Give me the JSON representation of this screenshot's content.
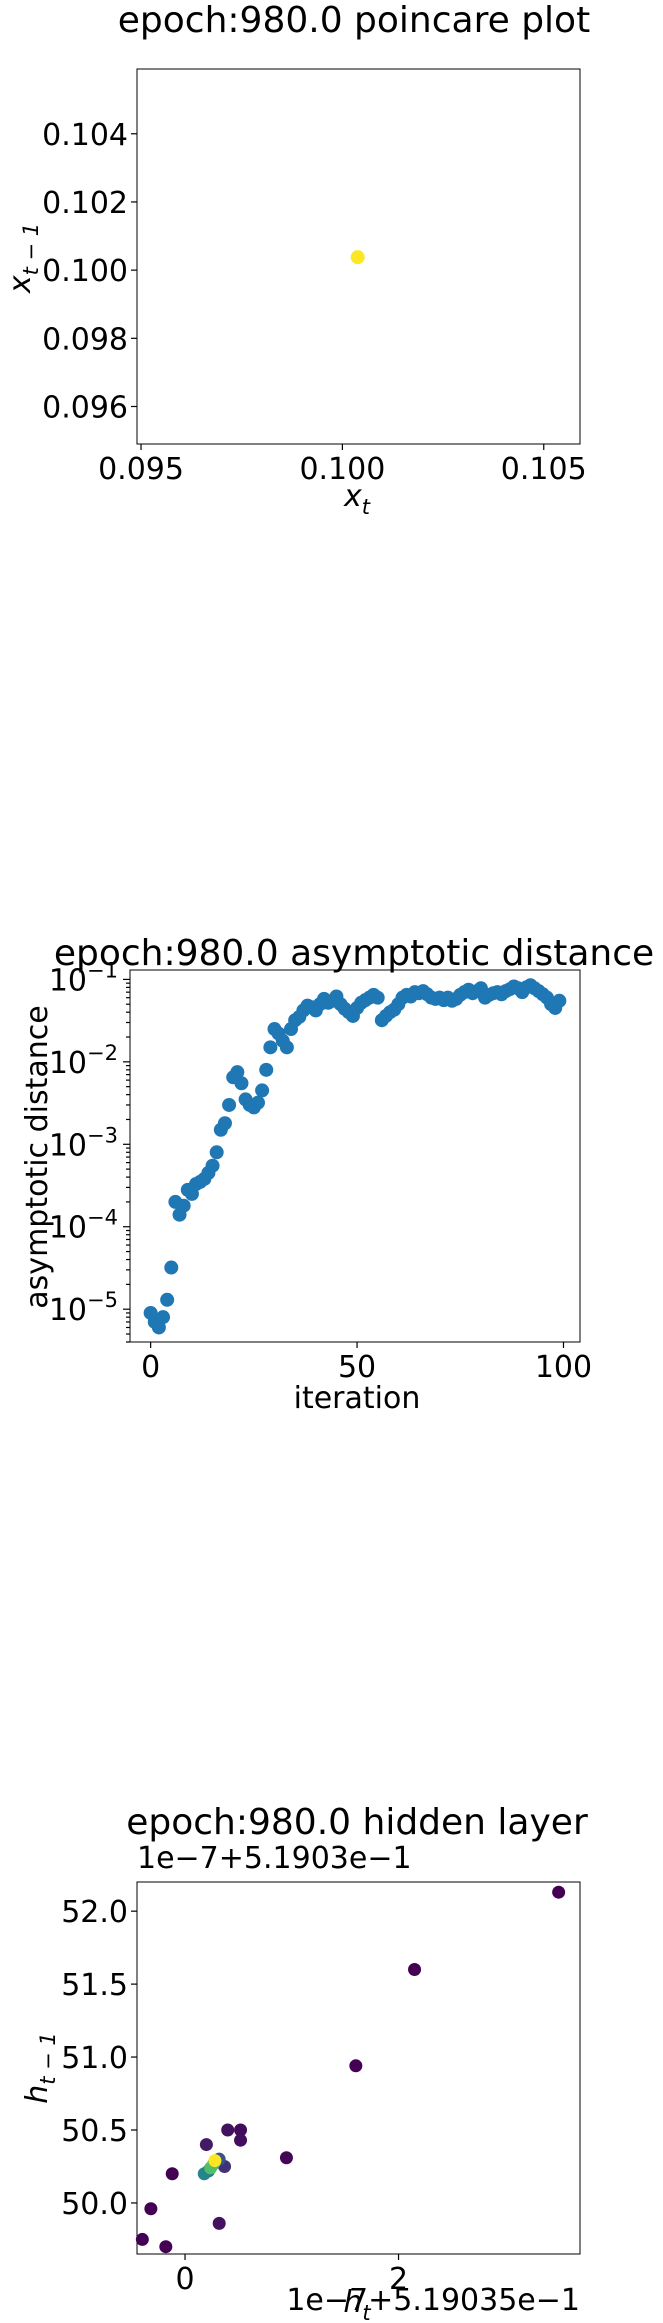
{
  "charts": [
    {
      "title": "epoch:980.0 poincare plot",
      "xlabel": "x",
      "xlabel_sub": "t",
      "ylabel": "x",
      "ylabel_sub": "t − 1",
      "xticks": [
        "0.095",
        "0.100",
        "0.105"
      ],
      "yticks": [
        "0.096",
        "0.098",
        "0.100",
        "0.102",
        "0.104"
      ]
    },
    {
      "title": "epoch:980.0 asymptotic distance",
      "xlabel": "iteration",
      "ylabel": "asymptotic distance",
      "xticks": [
        "0",
        "50",
        "100"
      ],
      "yticks_base": "10",
      "yticks_exp": [
        "−5",
        "−4",
        "−3",
        "−2",
        "−1"
      ]
    },
    {
      "title": "epoch:980.0 hidden layer",
      "xlabel": "h",
      "xlabel_sub": "t",
      "ylabel": "h",
      "ylabel_sub": "t − 1",
      "x_offset": "1e−7+5.19035e−1",
      "y_offset": "1e−7+5.1903e−1",
      "xticks": [
        "0",
        "2"
      ],
      "yticks": [
        "50.0",
        "50.5",
        "51.0",
        "51.5",
        "52.0"
      ]
    }
  ],
  "chart_data": [
    {
      "type": "scatter",
      "title": "epoch:980.0 poincare plot",
      "xlabel": "x_t",
      "ylabel": "x_{t-1}",
      "xlim": [
        0.0949,
        0.1059
      ],
      "ylim": [
        0.0949,
        0.1059
      ],
      "color": "#fde725",
      "points": [
        [
          0.10038,
          0.10038
        ]
      ]
    },
    {
      "type": "scatter",
      "title": "epoch:980.0 asymptotic distance",
      "xlabel": "iteration",
      "ylabel": "asymptotic distance",
      "yscale": "log",
      "xlim": [
        -5,
        104
      ],
      "ylim": [
        4e-06,
        0.13
      ],
      "color": "#1f77b4",
      "x": [
        0,
        1,
        2,
        3,
        4,
        5,
        6,
        7,
        8,
        9,
        10,
        11,
        12,
        13,
        14,
        15,
        16,
        17,
        18,
        19,
        20,
        21,
        22,
        23,
        24,
        25,
        26,
        27,
        28,
        29,
        30,
        31,
        32,
        33,
        34,
        35,
        36,
        37,
        38,
        39,
        40,
        41,
        42,
        43,
        44,
        45,
        46,
        47,
        48,
        49,
        50,
        51,
        52,
        53,
        54,
        55,
        56,
        57,
        58,
        59,
        60,
        61,
        62,
        63,
        64,
        65,
        66,
        67,
        68,
        69,
        70,
        71,
        72,
        73,
        74,
        75,
        76,
        77,
        78,
        79,
        80,
        81,
        82,
        83,
        84,
        85,
        86,
        87,
        88,
        89,
        90,
        91,
        92,
        93,
        94,
        95,
        96,
        97,
        98,
        99
      ],
      "y": [
        9e-06,
        7e-06,
        6e-06,
        8e-06,
        1.3e-05,
        3.2e-05,
        0.0002,
        0.00014,
        0.00018,
        0.00028,
        0.00025,
        0.00033,
        0.00035,
        0.00038,
        0.00045,
        0.00055,
        0.0008,
        0.0015,
        0.0018,
        0.003,
        0.0065,
        0.0075,
        0.0055,
        0.0035,
        0.003,
        0.0028,
        0.0032,
        0.0045,
        0.008,
        0.015,
        0.025,
        0.022,
        0.018,
        0.015,
        0.025,
        0.032,
        0.035,
        0.042,
        0.048,
        0.046,
        0.042,
        0.05,
        0.058,
        0.052,
        0.055,
        0.062,
        0.05,
        0.044,
        0.04,
        0.036,
        0.045,
        0.052,
        0.056,
        0.06,
        0.065,
        0.06,
        0.032,
        0.036,
        0.04,
        0.043,
        0.05,
        0.06,
        0.065,
        0.062,
        0.07,
        0.068,
        0.072,
        0.066,
        0.06,
        0.058,
        0.06,
        0.056,
        0.06,
        0.055,
        0.058,
        0.065,
        0.07,
        0.075,
        0.068,
        0.072,
        0.078,
        0.06,
        0.065,
        0.068,
        0.07,
        0.066,
        0.072,
        0.076,
        0.082,
        0.078,
        0.07,
        0.08,
        0.085,
        0.078,
        0.072,
        0.066,
        0.06,
        0.05,
        0.045,
        0.055
      ]
    },
    {
      "type": "scatter",
      "title": "epoch:980.0 hidden layer",
      "xlabel": "h_t",
      "ylabel": "h_{t-1}",
      "x_offset": "1e-7+5.19035e-1",
      "y_offset": "1e-7+5.1903e-1",
      "xlim": [
        -0.45,
        3.7
      ],
      "ylim": [
        49.65,
        52.2
      ],
      "colormap": "viridis",
      "points": [
        {
          "x": 3.5,
          "y": 52.13,
          "c": 0.0
        },
        {
          "x": 2.15,
          "y": 51.6,
          "c": 0.0
        },
        {
          "x": 1.6,
          "y": 50.94,
          "c": 0.0
        },
        {
          "x": 0.95,
          "y": 50.31,
          "c": 0.02
        },
        {
          "x": 0.52,
          "y": 50.5,
          "c": 0.03
        },
        {
          "x": 0.52,
          "y": 50.43,
          "c": 0.04
        },
        {
          "x": 0.4,
          "y": 50.5,
          "c": 0.05
        },
        {
          "x": 0.2,
          "y": 50.4,
          "c": 0.08
        },
        {
          "x": -0.12,
          "y": 50.2,
          "c": 0.0
        },
        {
          "x": -0.32,
          "y": 49.96,
          "c": 0.0
        },
        {
          "x": -0.4,
          "y": 49.75,
          "c": 0.0
        },
        {
          "x": -0.18,
          "y": 49.7,
          "c": 0.0
        },
        {
          "x": 0.32,
          "y": 49.86,
          "c": 0.05
        },
        {
          "x": 0.37,
          "y": 50.25,
          "c": 0.15
        },
        {
          "x": 0.32,
          "y": 50.3,
          "c": 0.25
        },
        {
          "x": 0.22,
          "y": 50.22,
          "c": 0.35
        },
        {
          "x": 0.18,
          "y": 50.2,
          "c": 0.45
        },
        {
          "x": 0.27,
          "y": 50.27,
          "c": 0.6
        },
        {
          "x": 0.24,
          "y": 50.24,
          "c": 0.7
        },
        {
          "x": 0.28,
          "y": 50.29,
          "c": 1.0
        }
      ]
    }
  ]
}
